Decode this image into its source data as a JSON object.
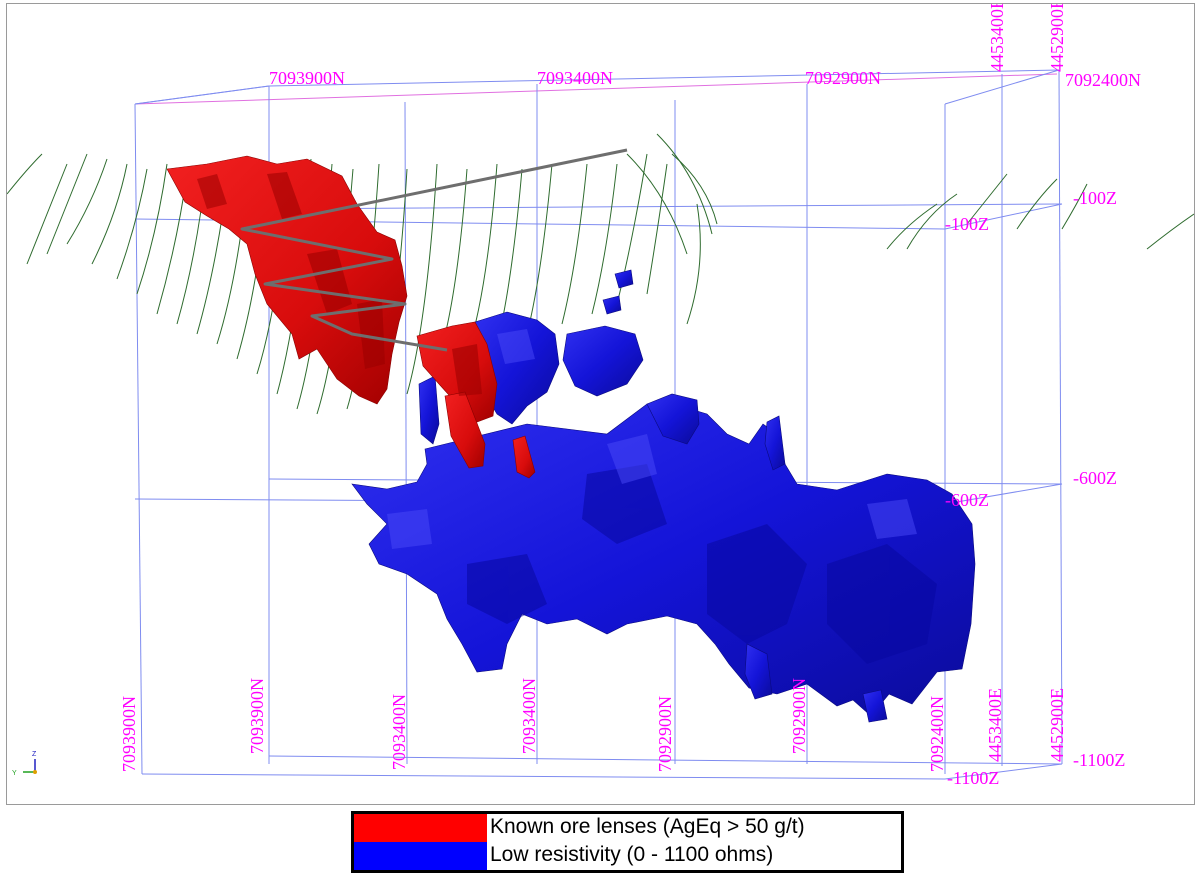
{
  "scene": {
    "colors": {
      "box_edge": "#7f8cf0",
      "box_top_edge": "#e070e0",
      "label": "#ff00ff",
      "ore": "#e01010",
      "ore_dark": "#a80000",
      "resistivity": "#1818e0",
      "resistivity_dark": "#0a0a90",
      "drillhole": "#2e6b2e",
      "decline": "#6e6e6e"
    },
    "top_north_labels": [
      "7093900N",
      "7093400N",
      "7092900N",
      "7092400N"
    ],
    "top_east_labels": [
      "4453400E",
      "4452900E"
    ],
    "right_z_labels": [
      "-100Z",
      "-600Z",
      "-1100Z"
    ],
    "inner_z_labels": [
      "-100Z",
      "-600Z",
      "-1100Z"
    ],
    "bottom_north_labels": [
      "7093900N",
      "7093900N",
      "7093400N",
      "7093400N",
      "7092900N",
      "7092900N",
      "7092400N"
    ],
    "bottom_east_labels": [
      "4453400E",
      "4452900E"
    ],
    "axis_triad": {
      "z": "Z",
      "y": "Y"
    }
  },
  "legend": {
    "items": [
      {
        "label": "Known ore lenses (AgEq > 50 g/t)",
        "color": "#ff0000"
      },
      {
        "label": "Low resistivity (0 - 1100 ohms)",
        "color": "#0000ff"
      }
    ]
  }
}
